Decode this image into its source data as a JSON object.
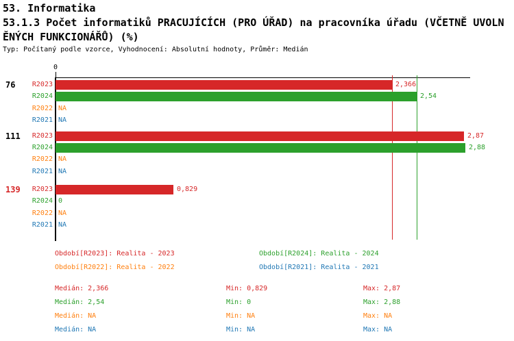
{
  "header": {
    "section": "53. Informatika",
    "title_line1": "53.1.3 Počet informatiků PRACUJÍCÍCH (PRO ÚŘAD) na pracovníka úřadu (VČETNĚ UVOLN",
    "title_line2": "ĚNÝCH FUNKCIONÁŘŮ) (%)",
    "subtitle": "Typ: Počítaný podle vzorce, Vyhodnocení: Absolutní hodnoty, Průměr: Medián"
  },
  "colors": {
    "r2023": "#d62728",
    "r2024": "#2ca02c",
    "r2022": "#ff7f0e",
    "r2021": "#1f77b4",
    "axis": "#000000",
    "highlight": "#d62728"
  },
  "chart_data": {
    "type": "bar",
    "orientation": "horizontal",
    "xlabel": "",
    "ylabel": "",
    "axis_zero_label": "0",
    "xlim": [
      0,
      2.92
    ],
    "grid": false,
    "series_order": [
      "R2023",
      "R2024",
      "R2022",
      "R2021"
    ],
    "median_lines": [
      {
        "series": "R2023",
        "value": 2.366
      },
      {
        "series": "R2024",
        "value": 2.54
      }
    ],
    "groups": [
      {
        "label": "76",
        "label_color": "#000000",
        "rows": [
          {
            "series": "R2023",
            "value": 2.366,
            "display": "2,366"
          },
          {
            "series": "R2024",
            "value": 2.54,
            "display": "2,54"
          },
          {
            "series": "R2022",
            "value": null,
            "display": "NA"
          },
          {
            "series": "R2021",
            "value": null,
            "display": "NA"
          }
        ]
      },
      {
        "label": "111",
        "label_color": "#000000",
        "rows": [
          {
            "series": "R2023",
            "value": 2.87,
            "display": "2,87"
          },
          {
            "series": "R2024",
            "value": 2.88,
            "display": "2,88"
          },
          {
            "series": "R2022",
            "value": null,
            "display": "NA"
          },
          {
            "series": "R2021",
            "value": null,
            "display": "NA"
          }
        ]
      },
      {
        "label": "139",
        "label_color": "#d62728",
        "rows": [
          {
            "series": "R2023",
            "value": 0.829,
            "display": "0,829"
          },
          {
            "series": "R2024",
            "value": 0,
            "display": "0"
          },
          {
            "series": "R2022",
            "value": null,
            "display": "NA"
          },
          {
            "series": "R2021",
            "value": null,
            "display": "NA"
          }
        ]
      }
    ]
  },
  "legend": [
    {
      "series": "r2023",
      "text": "Období[R2023]: Realita - 2023"
    },
    {
      "series": "r2024",
      "text": "Období[R2024]: Realita - 2024"
    },
    {
      "series": "r2022",
      "text": "Období[R2022]: Realita - 2022"
    },
    {
      "series": "r2021",
      "text": "Období[R2021]: Realita - 2021"
    }
  ],
  "stats": [
    {
      "series": "r2023",
      "median": "Medián: 2,366",
      "min": "Min: 0,829",
      "max": "Max: 2,87"
    },
    {
      "series": "r2024",
      "median": "Medián: 2,54",
      "min": "Min: 0",
      "max": "Max: 2,88"
    },
    {
      "series": "r2022",
      "median": "Medián: NA",
      "min": "Min: NA",
      "max": "Max: NA"
    },
    {
      "series": "r2021",
      "median": "Medián: NA",
      "min": "Min: NA",
      "max": "Max: NA"
    }
  ]
}
